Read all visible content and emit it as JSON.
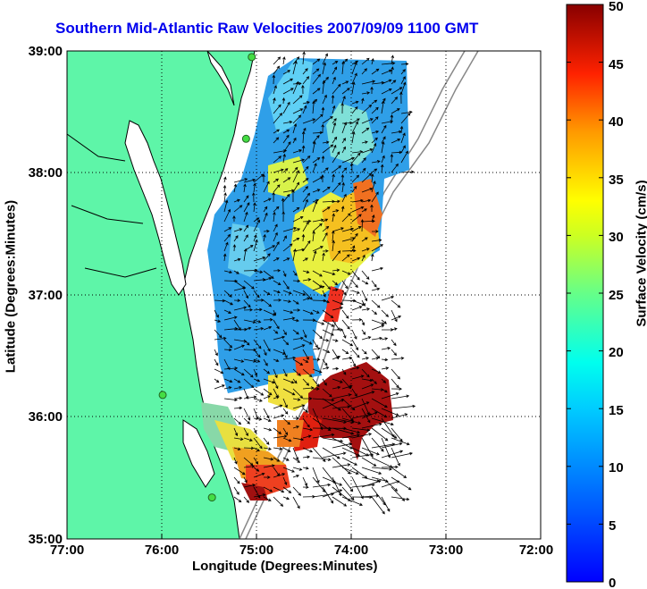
{
  "title": "Southern Mid-Atlantic Raw Velocities 2007/09/09 1100 GMT",
  "title_color": "#0000ee",
  "x_axis": {
    "label": "Longitude (Degrees:Minutes)",
    "ticks": [
      "77:00",
      "76:00",
      "75:00",
      "74:00",
      "73:00",
      "72:00"
    ]
  },
  "y_axis": {
    "label": "Latitude (Degrees:Minutes)",
    "ticks": [
      "35:00",
      "36:00",
      "37:00",
      "38:00",
      "39:00"
    ]
  },
  "colorbar": {
    "label": "Surface Velocity (cm/s)",
    "ticks": [
      "0",
      "5",
      "10",
      "15",
      "20",
      "25",
      "30",
      "35",
      "40",
      "45",
      "50"
    ],
    "min": 0,
    "max": 50
  },
  "colors": {
    "land": "#5ef5a8",
    "coast_line": "#000000",
    "grid": "#000000",
    "bathymetry": "#888888",
    "station": "#44dd44"
  },
  "stations": [
    {
      "lon": -75.05,
      "lat": 38.95
    },
    {
      "lon": -75.11,
      "lat": 38.28
    },
    {
      "lon": -75.99,
      "lat": 36.18
    },
    {
      "lon": -75.47,
      "lat": 35.34
    }
  ]
}
